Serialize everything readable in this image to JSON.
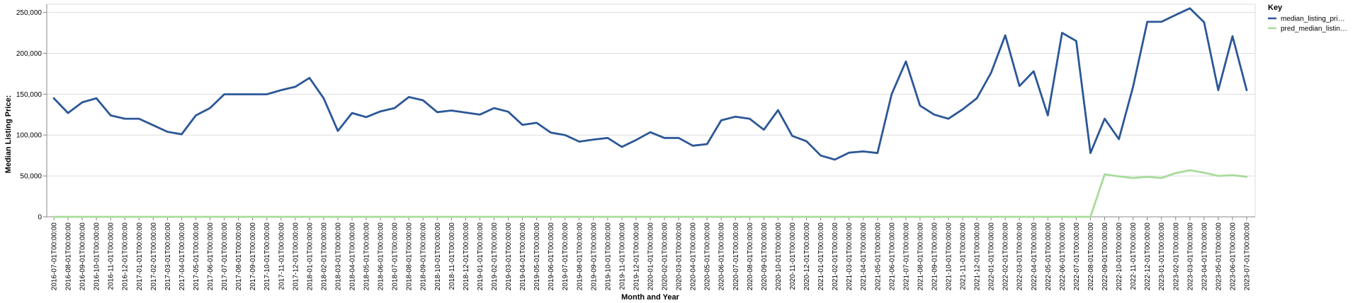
{
  "chart_data": {
    "type": "line",
    "title": "",
    "xlabel": "Month and Year",
    "ylabel": "Median Listing Price:",
    "ylim": [
      0,
      260000
    ],
    "y_ticks": [
      0,
      50000,
      100000,
      150000,
      200000,
      250000
    ],
    "y_tick_labels": [
      "0",
      "50,000",
      "100,000",
      "150,000",
      "200,000",
      "250,000"
    ],
    "grid": true,
    "legend": {
      "title": "Key",
      "position": "right",
      "items": [
        "median_listing_pri…",
        "pred_median_listin…"
      ]
    },
    "colors": [
      "#2b5797",
      "#a8dc9c"
    ],
    "x": [
      "2016-07-01T00:00:00",
      "2016-08-01T00:00:00",
      "2016-09-01T00:00:00",
      "2016-10-01T00:00:00",
      "2016-11-01T00:00:00",
      "2016-12-01T00:00:00",
      "2017-01-01T00:00:00",
      "2017-02-01T00:00:00",
      "2017-03-01T00:00:00",
      "2017-04-01T00:00:00",
      "2017-05-01T00:00:00",
      "2017-06-01T00:00:00",
      "2017-07-01T00:00:00",
      "2017-08-01T00:00:00",
      "2017-09-01T00:00:00",
      "2017-10-01T00:00:00",
      "2017-11-01T00:00:00",
      "2017-12-01T00:00:00",
      "2018-01-01T00:00:00",
      "2018-02-01T00:00:00",
      "2018-03-01T00:00:00",
      "2018-04-01T00:00:00",
      "2018-05-01T00:00:00",
      "2018-06-01T00:00:00",
      "2018-07-01T00:00:00",
      "2018-08-01T00:00:00",
      "2018-09-01T00:00:00",
      "2018-10-01T00:00:00",
      "2018-11-01T00:00:00",
      "2018-12-01T00:00:00",
      "2019-01-01T00:00:00",
      "2019-02-01T00:00:00",
      "2019-03-01T00:00:00",
      "2019-04-01T00:00:00",
      "2019-05-01T00:00:00",
      "2019-06-01T00:00:00",
      "2019-07-01T00:00:00",
      "2019-08-01T00:00:00",
      "2019-09-01T00:00:00",
      "2019-10-01T00:00:00",
      "2019-11-01T00:00:00",
      "2019-12-01T00:00:00",
      "2020-01-01T00:00:00",
      "2020-02-01T00:00:00",
      "2020-03-01T00:00:00",
      "2020-04-01T00:00:00",
      "2020-05-01T00:00:00",
      "2020-06-01T00:00:00",
      "2020-07-01T00:00:00",
      "2020-08-01T00:00:00",
      "2020-09-01T00:00:00",
      "2020-10-01T00:00:00",
      "2020-11-01T00:00:00",
      "2020-12-01T00:00:00",
      "2021-01-01T00:00:00",
      "2021-02-01T00:00:00",
      "2021-03-01T00:00:00",
      "2021-04-01T00:00:00",
      "2021-05-01T00:00:00",
      "2021-06-01T00:00:00",
      "2021-07-01T00:00:00",
      "2021-08-01T00:00:00",
      "2021-09-01T00:00:00",
      "2021-10-01T00:00:00",
      "2021-11-01T00:00:00",
      "2021-12-01T00:00:00",
      "2022-01-01T00:00:00",
      "2022-02-01T00:00:00",
      "2022-03-01T00:00:00",
      "2022-04-01T00:00:00",
      "2022-05-01T00:00:00",
      "2022-06-01T00:00:00",
      "2022-07-01T00:00:00",
      "2022-08-01T00:00:00",
      "2022-09-01T00:00:00",
      "2022-10-01T00:00:00",
      "2022-11-01T00:00:00",
      "2022-12-01T00:00:00",
      "2023-01-01T00:00:00",
      "2023-02-01T00:00:00",
      "2023-03-01T00:00:00",
      "2023-04-01T00:00:00",
      "2023-05-01T00:00:00",
      "2023-06-01T00:00:00",
      "2023-07-01T00:00:00"
    ],
    "series": [
      {
        "name": "median_listing_pri…",
        "values": [
          145000,
          127000,
          140000,
          145000,
          124000,
          120000,
          120000,
          112000,
          104000,
          101000,
          124000,
          133000,
          149900,
          149900,
          149900,
          149900,
          155000,
          159000,
          169900,
          145000,
          105000,
          127000,
          122000,
          129000,
          133000,
          146500,
          142500,
          128000,
          130000,
          127500,
          125000,
          133000,
          128500,
          112500,
          115000,
          103000,
          100000,
          92000,
          94500,
          96500,
          85500,
          94000,
          103500,
          96500,
          96500,
          87000,
          89000,
          118000,
          122500,
          120000,
          106500,
          130500,
          99000,
          92500,
          75000,
          70000,
          78500,
          80000,
          78000,
          150000,
          190000,
          136000,
          125000,
          120000,
          131500,
          145000,
          176000,
          222000,
          160000,
          178000,
          124000,
          225000,
          215000,
          78000,
          120000,
          95000,
          159000,
          238500,
          238500,
          247000,
          255000,
          238000,
          155000,
          221000,
          155000
        ]
      },
      {
        "name": "pred_median_listin…",
        "values": [
          0,
          0,
          0,
          0,
          0,
          0,
          0,
          0,
          0,
          0,
          0,
          0,
          0,
          0,
          0,
          0,
          0,
          0,
          0,
          0,
          0,
          0,
          0,
          0,
          0,
          0,
          0,
          0,
          0,
          0,
          0,
          0,
          0,
          0,
          0,
          0,
          0,
          0,
          0,
          0,
          0,
          0,
          0,
          0,
          0,
          0,
          0,
          0,
          0,
          0,
          0,
          0,
          0,
          0,
          0,
          0,
          0,
          0,
          0,
          0,
          0,
          0,
          0,
          0,
          0,
          0,
          0,
          0,
          0,
          0,
          0,
          0,
          0,
          0,
          52000,
          49500,
          47500,
          49000,
          47500,
          53500,
          57000,
          54000,
          50000,
          51000,
          49000
        ]
      }
    ]
  }
}
